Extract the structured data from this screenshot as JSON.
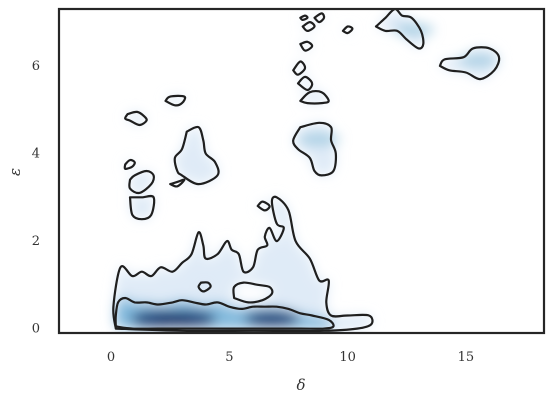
{
  "chart_data": {
    "type": "kde-contour",
    "title": "",
    "xlabel": "δ",
    "ylabel": "ε",
    "xlim": [
      -2.2,
      18.3
    ],
    "ylim": [
      -0.1,
      7.3
    ],
    "xticks": [
      0,
      5,
      10,
      15
    ],
    "yticks": [
      0,
      2,
      4,
      6
    ],
    "grid": false,
    "colormap": "Blues",
    "density_peaks": [
      {
        "x": 2.1,
        "y": 0.2,
        "weight": 1.0
      },
      {
        "x": 3.2,
        "y": 0.2,
        "weight": 0.95
      },
      {
        "x": 6.8,
        "y": 0.2,
        "weight": 0.8
      },
      {
        "x": 8.8,
        "y": 4.3,
        "weight": 0.25
      },
      {
        "x": 12.8,
        "y": 6.8,
        "weight": 0.2
      },
      {
        "x": 15.5,
        "y": 6.1,
        "weight": 0.18
      }
    ],
    "contours": [
      {
        "level": "outer",
        "points": [
          [
            0.2,
            0.0
          ],
          [
            0.1,
            0.5
          ],
          [
            0.4,
            1.4
          ],
          [
            0.9,
            1.2
          ],
          [
            1.3,
            1.3
          ],
          [
            1.7,
            1.2
          ],
          [
            2.1,
            1.4
          ],
          [
            2.6,
            1.3
          ],
          [
            3.0,
            1.5
          ],
          [
            3.4,
            1.7
          ],
          [
            3.7,
            2.2
          ],
          [
            3.9,
            1.9
          ],
          [
            4.0,
            1.6
          ],
          [
            4.5,
            1.7
          ],
          [
            4.9,
            2.0
          ],
          [
            5.1,
            1.8
          ],
          [
            5.4,
            1.7
          ],
          [
            5.6,
            1.3
          ],
          [
            6.0,
            1.4
          ],
          [
            6.2,
            1.8
          ],
          [
            6.6,
            1.9
          ],
          [
            6.5,
            2.1
          ],
          [
            6.7,
            2.3
          ],
          [
            7.0,
            2.0
          ],
          [
            7.3,
            2.3
          ],
          [
            7.0,
            2.4
          ],
          [
            6.8,
            2.9
          ],
          [
            7.0,
            3.0
          ],
          [
            7.5,
            2.7
          ],
          [
            7.8,
            2.0
          ],
          [
            8.4,
            1.6
          ],
          [
            8.8,
            1.1
          ],
          [
            9.2,
            1.1
          ],
          [
            9.1,
            0.6
          ],
          [
            9.3,
            0.3
          ],
          [
            10.0,
            0.3
          ],
          [
            10.9,
            0.3
          ],
          [
            11.0,
            0.1
          ],
          [
            10.4,
            0.0
          ],
          [
            9.0,
            -0.05
          ],
          [
            6.0,
            -0.05
          ],
          [
            3.0,
            -0.05
          ],
          [
            0.2,
            0.0
          ]
        ]
      },
      {
        "level": "inner",
        "points": [
          [
            0.2,
            0.05
          ],
          [
            0.2,
            0.3
          ],
          [
            0.3,
            0.6
          ],
          [
            0.6,
            0.7
          ],
          [
            1.0,
            0.6
          ],
          [
            1.5,
            0.6
          ],
          [
            2.0,
            0.55
          ],
          [
            2.6,
            0.6
          ],
          [
            3.0,
            0.65
          ],
          [
            3.5,
            0.6
          ],
          [
            4.0,
            0.55
          ],
          [
            4.5,
            0.6
          ],
          [
            5.0,
            0.5
          ],
          [
            5.5,
            0.45
          ],
          [
            6.0,
            0.5
          ],
          [
            6.5,
            0.5
          ],
          [
            7.0,
            0.5
          ],
          [
            7.5,
            0.45
          ],
          [
            8.0,
            0.35
          ],
          [
            8.5,
            0.3
          ],
          [
            9.2,
            0.2
          ],
          [
            9.4,
            0.05
          ],
          [
            9.0,
            0.0
          ],
          [
            8.0,
            0.0
          ],
          [
            6.5,
            0.0
          ],
          [
            5.0,
            0.0
          ],
          [
            3.5,
            0.0
          ],
          [
            2.0,
            0.0
          ],
          [
            0.9,
            0.0
          ],
          [
            0.2,
            0.05
          ]
        ]
      },
      {
        "level": "hole",
        "points": [
          [
            5.2,
            0.7
          ],
          [
            5.2,
            0.95
          ],
          [
            5.6,
            1.05
          ],
          [
            6.2,
            1.0
          ],
          [
            6.7,
            0.95
          ],
          [
            6.8,
            0.8
          ],
          [
            6.4,
            0.65
          ],
          [
            5.8,
            0.6
          ],
          [
            5.2,
            0.7
          ]
        ]
      },
      {
        "level": "outer",
        "points": [
          [
            3.8,
            1.05
          ],
          [
            3.7,
            0.95
          ],
          [
            3.9,
            0.85
          ],
          [
            4.2,
            0.95
          ],
          [
            4.1,
            1.05
          ],
          [
            3.8,
            1.05
          ]
        ]
      },
      {
        "level": "outer",
        "points": [
          [
            0.7,
            4.9
          ],
          [
            0.6,
            4.8
          ],
          [
            0.8,
            4.75
          ],
          [
            1.2,
            4.65
          ],
          [
            1.5,
            4.75
          ],
          [
            1.4,
            4.85
          ],
          [
            1.1,
            4.95
          ],
          [
            0.7,
            4.9
          ]
        ]
      },
      {
        "level": "outer",
        "points": [
          [
            2.3,
            5.2
          ],
          [
            2.5,
            5.3
          ],
          [
            3.1,
            5.3
          ],
          [
            3.0,
            5.15
          ],
          [
            2.7,
            5.1
          ],
          [
            2.3,
            5.2
          ]
        ]
      },
      {
        "level": "outer",
        "points": [
          [
            3.2,
            4.5
          ],
          [
            3.0,
            4.1
          ],
          [
            2.7,
            3.9
          ],
          [
            2.8,
            3.6
          ],
          [
            3.0,
            3.5
          ],
          [
            3.7,
            3.3
          ],
          [
            4.5,
            3.5
          ],
          [
            4.4,
            3.8
          ],
          [
            4.0,
            4.0
          ],
          [
            3.9,
            4.3
          ],
          [
            3.7,
            4.6
          ],
          [
            3.2,
            4.5
          ]
        ]
      },
      {
        "level": "outer",
        "points": [
          [
            0.6,
            3.75
          ],
          [
            0.6,
            3.65
          ],
          [
            0.9,
            3.7
          ],
          [
            1.0,
            3.8
          ],
          [
            0.8,
            3.85
          ],
          [
            0.6,
            3.75
          ]
        ]
      },
      {
        "level": "outer",
        "points": [
          [
            0.8,
            3.4
          ],
          [
            0.8,
            3.2
          ],
          [
            1.2,
            3.1
          ],
          [
            1.7,
            3.3
          ],
          [
            1.8,
            3.5
          ],
          [
            1.5,
            3.6
          ],
          [
            1.0,
            3.5
          ],
          [
            0.8,
            3.4
          ]
        ]
      },
      {
        "level": "outer",
        "points": [
          [
            2.5,
            3.3
          ],
          [
            2.8,
            3.35
          ],
          [
            3.1,
            3.4
          ],
          [
            2.8,
            3.25
          ],
          [
            2.5,
            3.3
          ]
        ]
      },
      {
        "level": "outer",
        "points": [
          [
            0.8,
            3.0
          ],
          [
            0.9,
            2.6
          ],
          [
            1.3,
            2.5
          ],
          [
            1.7,
            2.6
          ],
          [
            1.8,
            3.0
          ],
          [
            1.3,
            3.0
          ],
          [
            0.8,
            3.0
          ]
        ]
      },
      {
        "level": "outer",
        "points": [
          [
            6.2,
            2.8
          ],
          [
            6.4,
            2.9
          ],
          [
            6.7,
            2.8
          ],
          [
            6.5,
            2.7
          ],
          [
            6.2,
            2.8
          ]
        ]
      },
      {
        "level": "outer",
        "points": [
          [
            8.0,
            4.6
          ],
          [
            7.7,
            4.3
          ],
          [
            7.9,
            4.1
          ],
          [
            8.4,
            3.9
          ],
          [
            8.6,
            3.6
          ],
          [
            8.9,
            3.5
          ],
          [
            9.4,
            3.6
          ],
          [
            9.5,
            4.0
          ],
          [
            9.3,
            4.3
          ],
          [
            9.3,
            4.6
          ],
          [
            8.8,
            4.7
          ],
          [
            8.0,
            4.6
          ]
        ]
      },
      {
        "level": "outer",
        "points": [
          [
            8.0,
            5.2
          ],
          [
            8.4,
            5.4
          ],
          [
            8.9,
            5.4
          ],
          [
            9.2,
            5.2
          ],
          [
            8.9,
            5.15
          ],
          [
            8.3,
            5.15
          ],
          [
            8.0,
            5.2
          ]
        ]
      },
      {
        "level": "outer",
        "points": [
          [
            7.9,
            5.6
          ],
          [
            8.2,
            5.75
          ],
          [
            8.5,
            5.6
          ],
          [
            8.3,
            5.45
          ],
          [
            7.9,
            5.6
          ]
        ]
      },
      {
        "level": "outer",
        "points": [
          [
            7.7,
            5.9
          ],
          [
            8.0,
            6.1
          ],
          [
            8.2,
            5.95
          ],
          [
            7.9,
            5.8
          ],
          [
            7.7,
            5.9
          ]
        ]
      },
      {
        "level": "outer",
        "points": [
          [
            8.0,
            6.5
          ],
          [
            8.3,
            6.55
          ],
          [
            8.5,
            6.45
          ],
          [
            8.2,
            6.35
          ],
          [
            8.0,
            6.5
          ]
        ]
      },
      {
        "level": "outer",
        "points": [
          [
            8.1,
            6.9
          ],
          [
            8.4,
            7.0
          ],
          [
            8.6,
            6.9
          ],
          [
            8.3,
            6.8
          ],
          [
            8.1,
            6.9
          ]
        ]
      },
      {
        "level": "outer",
        "points": [
          [
            8.6,
            7.1
          ],
          [
            8.9,
            7.2
          ],
          [
            9.0,
            7.1
          ],
          [
            8.8,
            7.0
          ],
          [
            8.6,
            7.1
          ]
        ]
      },
      {
        "level": "outer",
        "points": [
          [
            8.0,
            7.1
          ],
          [
            8.2,
            7.15
          ],
          [
            8.3,
            7.1
          ],
          [
            8.1,
            7.05
          ],
          [
            8.0,
            7.1
          ]
        ]
      },
      {
        "level": "outer",
        "points": [
          [
            9.8,
            6.8
          ],
          [
            10.0,
            6.9
          ],
          [
            10.2,
            6.85
          ],
          [
            10.0,
            6.75
          ],
          [
            9.8,
            6.8
          ]
        ]
      },
      {
        "level": "outer",
        "points": [
          [
            11.2,
            6.9
          ],
          [
            11.6,
            7.1
          ],
          [
            12.0,
            7.3
          ],
          [
            12.3,
            7.15
          ],
          [
            12.7,
            7.1
          ],
          [
            13.1,
            6.8
          ],
          [
            13.2,
            6.5
          ],
          [
            13.0,
            6.4
          ],
          [
            12.5,
            6.6
          ],
          [
            12.1,
            6.8
          ],
          [
            11.6,
            6.8
          ],
          [
            11.2,
            6.9
          ]
        ]
      },
      {
        "level": "outer",
        "points": [
          [
            13.9,
            6.0
          ],
          [
            14.1,
            6.15
          ],
          [
            14.9,
            6.2
          ],
          [
            15.3,
            6.4
          ],
          [
            16.0,
            6.4
          ],
          [
            16.4,
            6.2
          ],
          [
            16.2,
            5.9
          ],
          [
            15.6,
            5.7
          ],
          [
            15.0,
            5.85
          ],
          [
            14.3,
            5.9
          ],
          [
            13.9,
            6.0
          ]
        ]
      }
    ]
  }
}
